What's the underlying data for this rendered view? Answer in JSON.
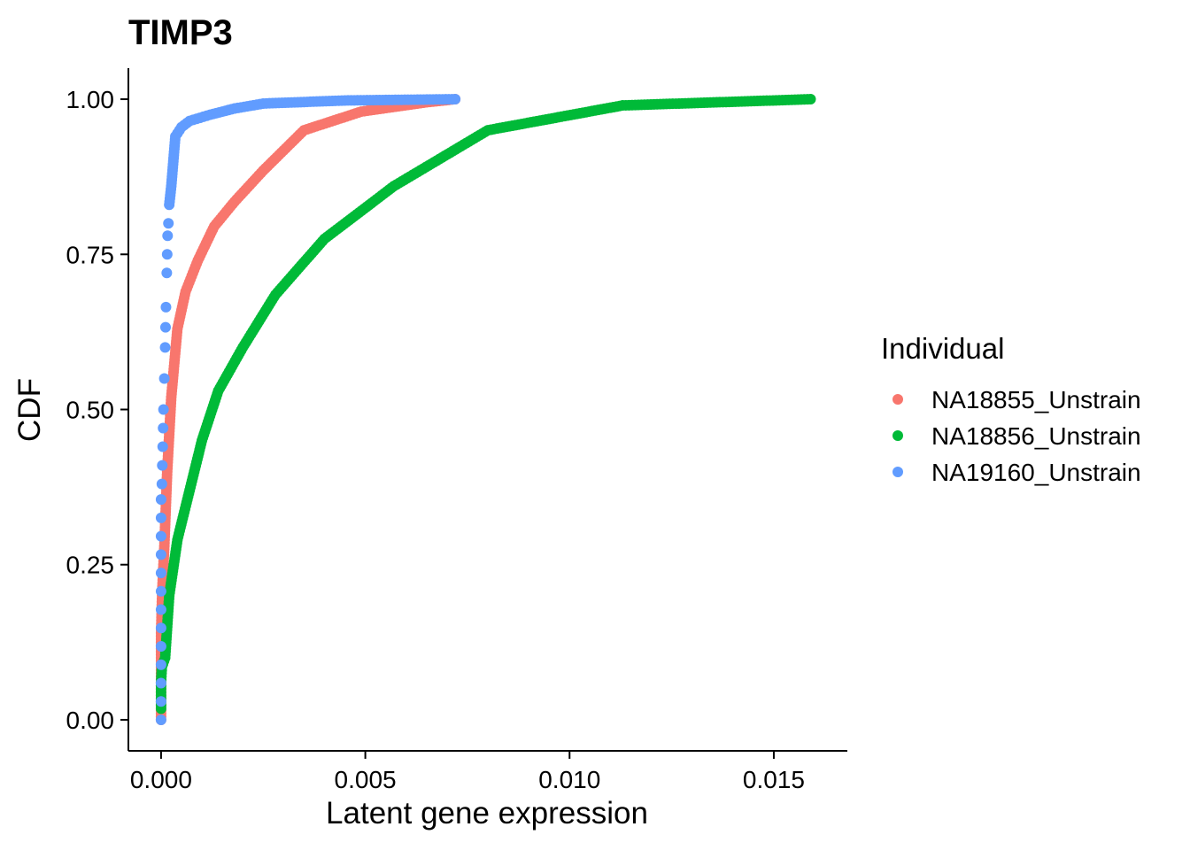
{
  "chart_data": {
    "type": "scatter",
    "title": "TIMP3",
    "xlabel": "Latent gene expression",
    "ylabel": "CDF",
    "xlim": [
      -0.0008,
      0.0168
    ],
    "ylim": [
      -0.05,
      1.05
    ],
    "x_ticks": [
      0.0,
      0.005,
      0.01,
      0.015
    ],
    "x_tick_labels": [
      "0.000",
      "0.005",
      "0.010",
      "0.015"
    ],
    "y_ticks": [
      0.0,
      0.25,
      0.5,
      0.75,
      1.0
    ],
    "y_tick_labels": [
      "0.00",
      "0.25",
      "0.50",
      "0.75",
      "1.00"
    ],
    "grid": false,
    "legend": {
      "title": "Individual",
      "position": "right"
    },
    "series": [
      {
        "name": "NA18855_Unstrain",
        "color": "#F8766D",
        "points": [
          [
            0.0,
            0.0
          ],
          [
            0.0,
            0.035
          ],
          [
            0.0,
            0.14
          ],
          [
            2e-05,
            0.19
          ],
          [
            3e-05,
            0.21
          ],
          [
            8e-05,
            0.28
          ],
          [
            0.00015,
            0.4
          ],
          [
            0.00025,
            0.52
          ],
          [
            0.0004,
            0.63
          ],
          [
            0.0006,
            0.69
          ],
          [
            0.0009,
            0.74
          ],
          [
            0.0013,
            0.795
          ],
          [
            0.0018,
            0.835
          ],
          [
            0.0025,
            0.885
          ],
          [
            0.0035,
            0.95
          ],
          [
            0.0049,
            0.98
          ],
          [
            0.0065,
            0.995
          ],
          [
            0.0072,
            1.0
          ]
        ]
      },
      {
        "name": "NA18856_Unstrain",
        "color": "#00BA38",
        "points": [
          [
            0.0,
            0.018
          ],
          [
            0.0,
            0.06
          ],
          [
            2e-05,
            0.085
          ],
          [
            0.0001,
            0.1
          ],
          [
            0.0002,
            0.2
          ],
          [
            0.0004,
            0.29
          ],
          [
            0.0007,
            0.37
          ],
          [
            0.001,
            0.45
          ],
          [
            0.0014,
            0.53
          ],
          [
            0.002,
            0.6
          ],
          [
            0.0028,
            0.685
          ],
          [
            0.004,
            0.775
          ],
          [
            0.0057,
            0.86
          ],
          [
            0.008,
            0.95
          ],
          [
            0.0113,
            0.99
          ],
          [
            0.0159,
            1.0
          ]
        ]
      },
      {
        "name": "NA19160_Unstrain",
        "color": "#619CFF",
        "points": [
          [
            0.0,
            0.0
          ],
          [
            0.0,
            0.355
          ],
          [
            2e-05,
            0.38
          ],
          [
            3e-05,
            0.41
          ],
          [
            4e-05,
            0.44
          ],
          [
            5e-05,
            0.47
          ],
          [
            6e-05,
            0.5
          ],
          [
            8e-05,
            0.55
          ],
          [
            0.0001,
            0.6
          ],
          [
            0.00012,
            0.665
          ],
          [
            0.00014,
            0.72
          ],
          [
            0.00016,
            0.78
          ],
          [
            0.00018,
            0.8
          ],
          [
            0.0002,
            0.83
          ],
          [
            0.00025,
            0.86
          ],
          [
            0.0003,
            0.9
          ],
          [
            0.00035,
            0.94
          ],
          [
            0.0005,
            0.955
          ],
          [
            0.0007,
            0.965
          ],
          [
            0.0012,
            0.975
          ],
          [
            0.0018,
            0.985
          ],
          [
            0.0025,
            0.993
          ],
          [
            0.0045,
            0.998
          ],
          [
            0.0072,
            1.0
          ]
        ]
      }
    ]
  }
}
